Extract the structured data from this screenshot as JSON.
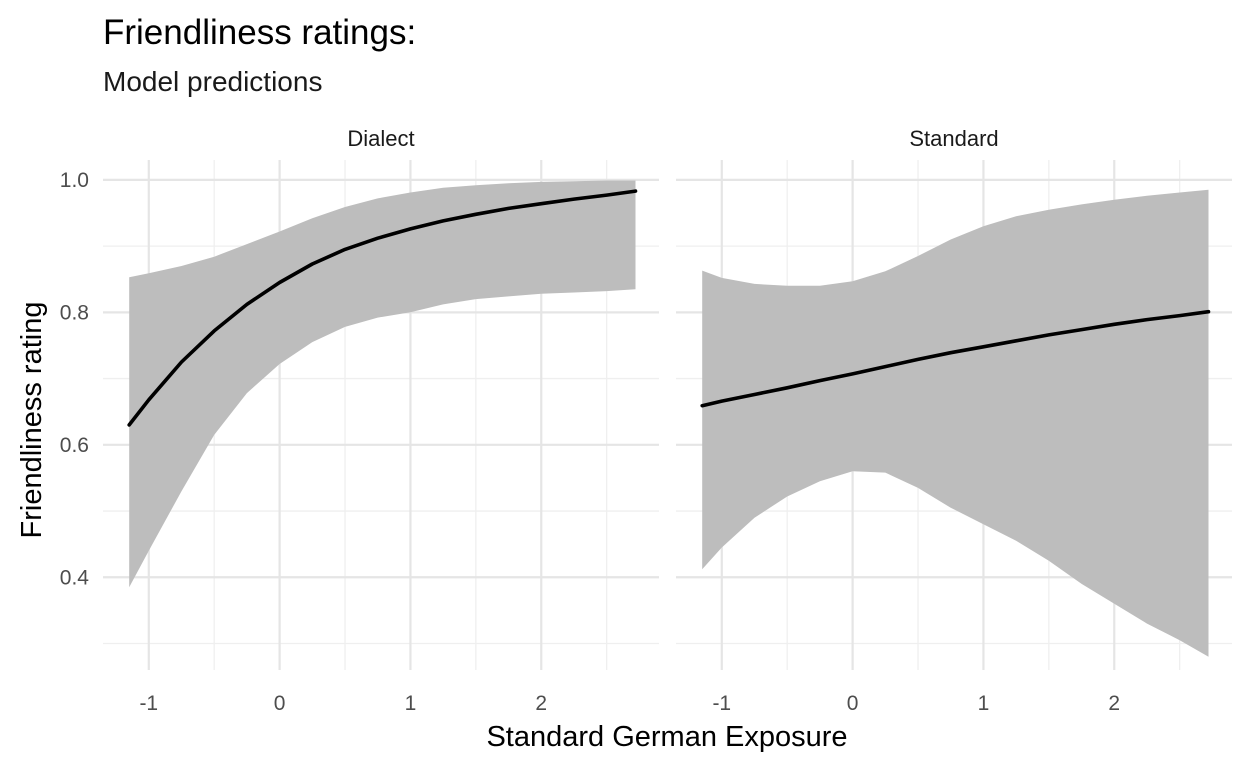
{
  "chart_data": {
    "type": "line",
    "title": "Friendliness ratings:",
    "subtitle": "Model predictions",
    "xlabel": "Standard German Exposure",
    "ylabel": "Friendliness rating",
    "xlim": [
      -1.35,
      2.9
    ],
    "ylim": [
      0.26,
      1.03
    ],
    "x_ticks": [
      -1,
      0,
      1,
      2
    ],
    "x_tick_labels": [
      "-1",
      "0",
      "1",
      "2"
    ],
    "y_ticks": [
      0.4,
      0.6,
      0.8,
      1.0
    ],
    "y_tick_labels": [
      "0.4",
      "0.6",
      "0.8",
      "1.0"
    ],
    "grid": true,
    "colors": {
      "line": "#000000",
      "ribbon": "#bdbdbd",
      "grid_major": "#e5e5e5",
      "grid_minor": "#efefef"
    },
    "panels": [
      {
        "strip": "Dialect",
        "x": [
          -1.15,
          -1.0,
          -0.75,
          -0.5,
          -0.25,
          0.0,
          0.25,
          0.5,
          0.75,
          1.0,
          1.25,
          1.5,
          1.75,
          2.0,
          2.25,
          2.5,
          2.72
        ],
        "y": [
          0.63,
          0.668,
          0.725,
          0.772,
          0.812,
          0.845,
          0.873,
          0.895,
          0.912,
          0.926,
          0.938,
          0.948,
          0.957,
          0.964,
          0.971,
          0.977,
          0.983
        ],
        "lower": [
          0.385,
          0.44,
          0.53,
          0.615,
          0.678,
          0.722,
          0.755,
          0.778,
          0.792,
          0.8,
          0.812,
          0.82,
          0.824,
          0.828,
          0.83,
          0.832,
          0.835
        ],
        "upper": [
          0.853,
          0.859,
          0.87,
          0.884,
          0.903,
          0.922,
          0.942,
          0.959,
          0.972,
          0.981,
          0.988,
          0.992,
          0.995,
          0.997,
          0.998,
          0.999,
          0.999
        ]
      },
      {
        "strip": "Standard",
        "x": [
          -1.15,
          -1.0,
          -0.75,
          -0.5,
          -0.25,
          0.0,
          0.25,
          0.5,
          0.75,
          1.0,
          1.25,
          1.5,
          1.75,
          2.0,
          2.25,
          2.5,
          2.72
        ],
        "y": [
          0.659,
          0.666,
          0.676,
          0.686,
          0.697,
          0.707,
          0.718,
          0.729,
          0.739,
          0.748,
          0.757,
          0.766,
          0.774,
          0.782,
          0.789,
          0.795,
          0.801
        ],
        "lower": [
          0.412,
          0.445,
          0.49,
          0.522,
          0.545,
          0.56,
          0.558,
          0.535,
          0.505,
          0.48,
          0.455,
          0.425,
          0.39,
          0.36,
          0.33,
          0.305,
          0.28
        ],
        "upper": [
          0.863,
          0.852,
          0.843,
          0.84,
          0.84,
          0.847,
          0.862,
          0.885,
          0.91,
          0.93,
          0.945,
          0.955,
          0.963,
          0.97,
          0.976,
          0.981,
          0.985
        ]
      }
    ]
  }
}
